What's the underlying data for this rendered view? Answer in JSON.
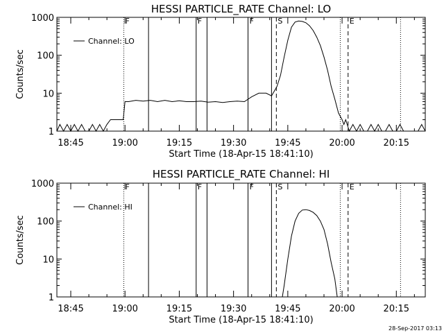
{
  "footer": {
    "timestamp": "28-Sep-2017 03:13"
  },
  "chart_data": [
    {
      "type": "line",
      "title": "HESSI PARTICLE_RATE Channel: LO",
      "xlabel": "Start Time (18-Apr-15 18:41:10)",
      "ylabel": "Counts/sec",
      "yscale": "log",
      "ylim": [
        1,
        1000
      ],
      "xlim": [
        "18:41:10",
        "20:23"
      ],
      "xticks": [
        "18:45",
        "19:00",
        "19:15",
        "19:30",
        "19:45",
        "20:00",
        "20:15"
      ],
      "yticks": [
        "1",
        "10",
        "100",
        "1000"
      ],
      "legend": {
        "label": "Channel: LO",
        "position": "top-left"
      },
      "markers": [
        {
          "time": "18:59:40",
          "style": "dotted",
          "label": "F"
        },
        {
          "time": "19:06:30",
          "style": "solid",
          "label": ""
        },
        {
          "time": "19:19:40",
          "style": "solid",
          "label": "F"
        },
        {
          "time": "19:22:40",
          "style": "solid",
          "label": ""
        },
        {
          "time": "19:34:00",
          "style": "solid",
          "label": "F"
        },
        {
          "time": "19:40:30",
          "style": "solid",
          "label": ""
        },
        {
          "time": "19:41:50",
          "style": "dashed",
          "label": "S"
        },
        {
          "time": "19:59:30",
          "style": "dotted",
          "label": ""
        },
        {
          "time": "20:01:40",
          "style": "dashed",
          "label": "E"
        },
        {
          "time": "20:16:10",
          "style": "dotted",
          "label": ""
        }
      ],
      "series": [
        {
          "name": "Channel: LO",
          "x": [
            "18:41:10",
            "18:42:00",
            "18:43:00",
            "18:44:00",
            "18:45:00",
            "18:46:00",
            "18:47:00",
            "18:48:00",
            "18:49:00",
            "18:50:00",
            "18:51:00",
            "18:52:00",
            "18:53:00",
            "18:54:00",
            "18:55:00",
            "18:56:00",
            "18:57:00",
            "18:58:00",
            "18:59:00",
            "18:59:30",
            "19:00:00",
            "19:01:00",
            "19:03:00",
            "19:05:00",
            "19:07:00",
            "19:09:00",
            "19:11:00",
            "19:13:00",
            "19:15:00",
            "19:17:00",
            "19:19:00",
            "19:21:00",
            "19:23:00",
            "19:25:00",
            "19:27:00",
            "19:29:00",
            "19:31:00",
            "19:33:00",
            "19:35:00",
            "19:37:00",
            "19:39:00",
            "19:40:30",
            "19:42:00",
            "19:43:00",
            "19:44:00",
            "19:45:00",
            "19:46:00",
            "19:47:00",
            "19:48:00",
            "19:49:00",
            "19:50:00",
            "19:51:00",
            "19:52:00",
            "19:53:00",
            "19:54:00",
            "19:55:00",
            "19:56:00",
            "19:57:00",
            "19:58:00",
            "19:59:00",
            "20:00:00",
            "20:00:30",
            "20:01:00",
            "20:02:00",
            "20:03:00",
            "20:04:00",
            "20:05:00",
            "20:06:00",
            "20:07:00",
            "20:08:00",
            "20:09:00",
            "20:10:00",
            "20:11:00",
            "20:12:00",
            "20:13:00",
            "20:14:00",
            "20:15:00",
            "20:16:00",
            "20:17:00",
            "20:18:00",
            "20:19:00",
            "20:20:00",
            "20:21:00",
            "20:22:00",
            "20:23:00"
          ],
          "values": [
            1,
            1.5,
            1,
            1.5,
            1,
            1.5,
            1,
            1.5,
            1,
            1,
            1.5,
            1,
            1.5,
            1,
            1.5,
            2,
            2,
            2,
            2,
            2,
            6,
            6,
            6.5,
            6.2,
            6.5,
            6,
            6.5,
            6,
            6.3,
            6,
            6,
            6.2,
            5.8,
            6,
            5.7,
            6,
            6.2,
            6,
            8,
            10,
            10,
            8.5,
            15,
            30,
            90,
            250,
            550,
            750,
            800,
            780,
            720,
            600,
            450,
            300,
            180,
            90,
            40,
            15,
            7,
            3,
            2,
            1.5,
            2,
            1,
            1.5,
            1,
            1.5,
            1,
            1,
            1.5,
            1,
            1.5,
            1,
            1,
            1.5,
            1,
            1,
            1.5,
            1,
            1,
            1,
            1,
            1,
            1.5,
            1
          ]
        }
      ]
    },
    {
      "type": "line",
      "title": "HESSI PARTICLE_RATE Channel: HI",
      "xlabel": "Start Time (18-Apr-15 18:41:10)",
      "ylabel": "Counts/sec",
      "yscale": "log",
      "ylim": [
        1,
        1000
      ],
      "xlim": [
        "18:41:10",
        "20:23"
      ],
      "xticks": [
        "18:45",
        "19:00",
        "19:15",
        "19:30",
        "19:45",
        "20:00",
        "20:15"
      ],
      "yticks": [
        "1",
        "10",
        "100",
        "1000"
      ],
      "legend": {
        "label": "Channel: HI",
        "position": "top-left"
      },
      "markers": [
        {
          "time": "18:59:40",
          "style": "dotted",
          "label": "F"
        },
        {
          "time": "19:06:30",
          "style": "solid",
          "label": ""
        },
        {
          "time": "19:19:40",
          "style": "solid",
          "label": "F"
        },
        {
          "time": "19:22:40",
          "style": "solid",
          "label": ""
        },
        {
          "time": "19:34:00",
          "style": "solid",
          "label": "F"
        },
        {
          "time": "19:40:30",
          "style": "solid",
          "label": ""
        },
        {
          "time": "19:41:50",
          "style": "dashed",
          "label": "S"
        },
        {
          "time": "19:59:30",
          "style": "dotted",
          "label": ""
        },
        {
          "time": "20:01:40",
          "style": "dashed",
          "label": "E"
        },
        {
          "time": "20:16:10",
          "style": "dotted",
          "label": ""
        }
      ],
      "series": [
        {
          "name": "Channel: HI",
          "x": [
            "19:43:30",
            "19:44:00",
            "19:45:00",
            "19:46:00",
            "19:47:00",
            "19:48:00",
            "19:49:00",
            "19:50:00",
            "19:51:00",
            "19:52:00",
            "19:53:00",
            "19:54:00",
            "19:55:00",
            "19:56:00",
            "19:57:00",
            "19:58:00",
            "19:58:40"
          ],
          "values": [
            1,
            2,
            10,
            40,
            100,
            160,
            195,
            200,
            190,
            170,
            140,
            100,
            60,
            25,
            8,
            3,
            1
          ]
        }
      ]
    }
  ]
}
